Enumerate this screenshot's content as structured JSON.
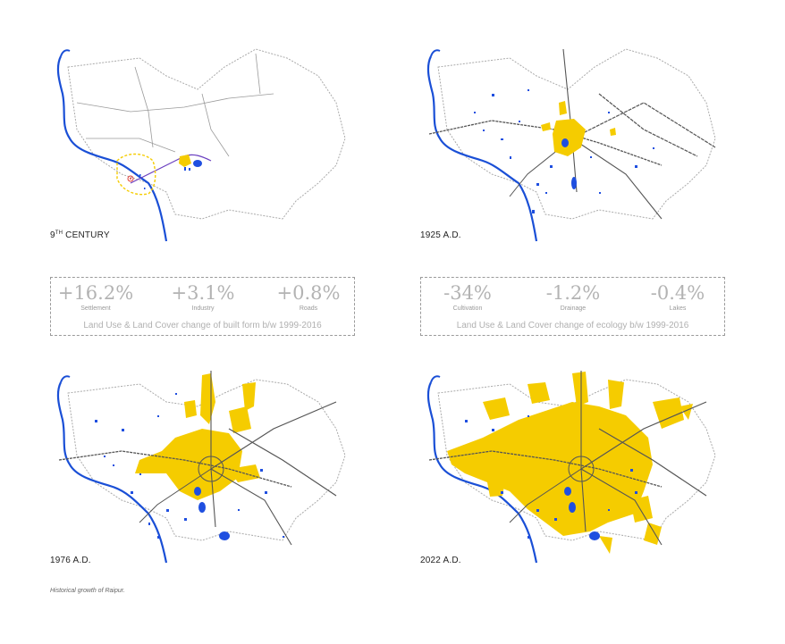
{
  "maps": [
    {
      "label_main": "9",
      "label_sup": "TH",
      "label_rest": " CENTURY"
    },
    {
      "label_main": "1925 A.D.",
      "label_sup": "",
      "label_rest": ""
    },
    {
      "label_main": "1976 A.D.",
      "label_sup": "",
      "label_rest": ""
    },
    {
      "label_main": "2022 A.D.",
      "label_sup": "",
      "label_rest": ""
    }
  ],
  "built_form": {
    "stats": [
      {
        "value": "+16.2%",
        "caption": "Settlement"
      },
      {
        "value": "+3.1%",
        "caption": "Industry"
      },
      {
        "value": "+0.8%",
        "caption": "Roads"
      }
    ],
    "description": "Land Use & Land Cover change of built form b/w 1999-2016"
  },
  "ecology": {
    "stats": [
      {
        "value": "-34%",
        "caption": "Cultivation"
      },
      {
        "value": "-1.2%",
        "caption": "Drainage"
      },
      {
        "value": "-0.4%",
        "caption": "Lakes"
      }
    ],
    "description": "Land Use & Land Cover change of ecology b/w 1999-2016"
  },
  "caption": "Historical growth of Raipur.",
  "colors": {
    "settlement": "#f5cc00",
    "water": "#1f4fe0",
    "river": "#1a4fd6",
    "road": "#666666",
    "boundary": "#aaaaaa"
  }
}
